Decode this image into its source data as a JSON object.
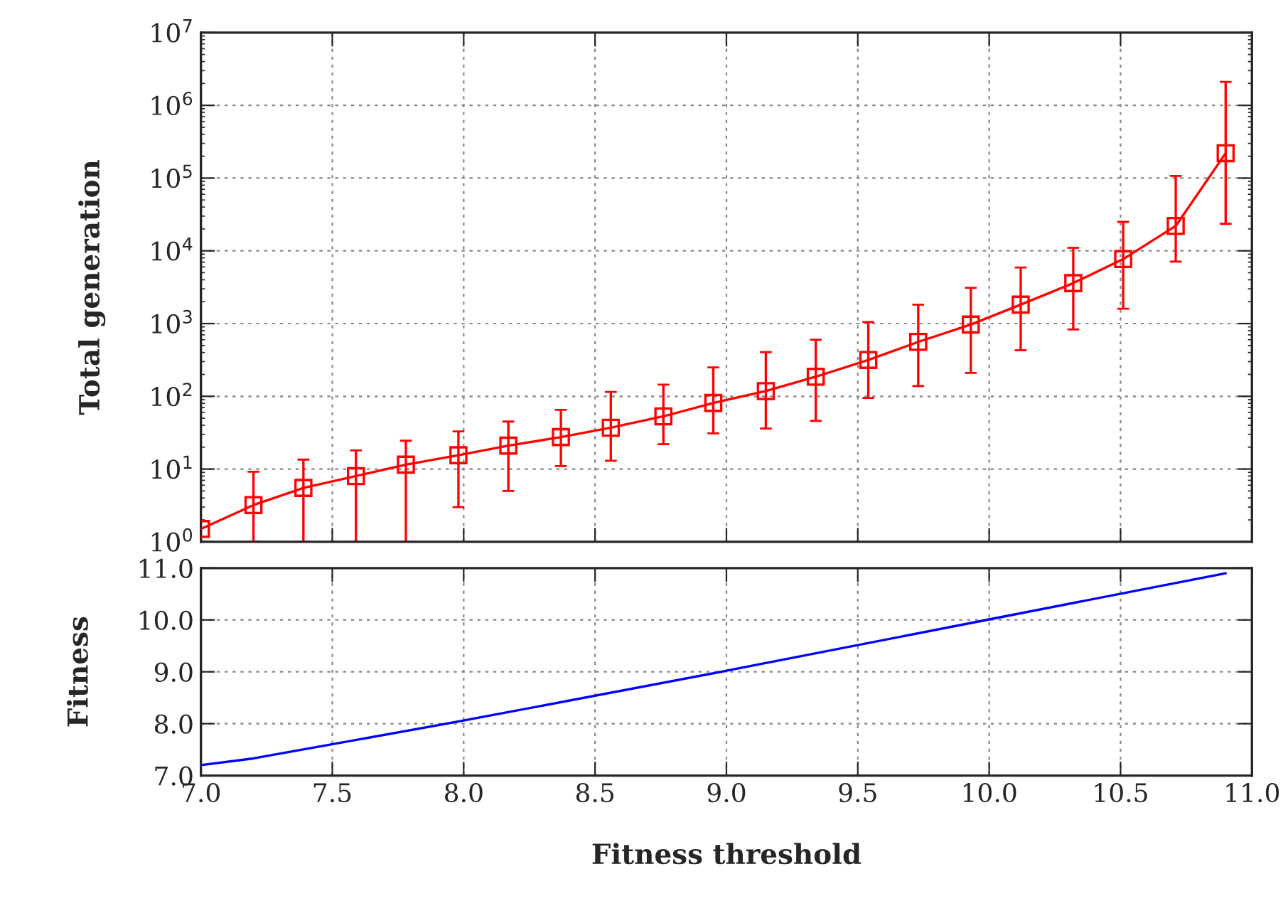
{
  "chart_data": [
    {
      "type": "line",
      "ylabel": "Total generation",
      "log": "y",
      "grid": true,
      "marker": "square",
      "line_style": "solid",
      "tick_labels": "y",
      "xlim": [
        7.0,
        11.0
      ],
      "xticks": [
        {
          "value": 7.0,
          "label": null
        },
        {
          "value": 7.5,
          "label": null
        },
        {
          "value": 8.0,
          "label": null
        },
        {
          "value": 8.5,
          "label": null
        },
        {
          "value": 9.0,
          "label": null
        },
        {
          "value": 9.5,
          "label": null
        },
        {
          "value": 10.0,
          "label": null
        },
        {
          "value": 10.5,
          "label": null
        },
        {
          "value": 11.0,
          "label": null
        }
      ],
      "ylim": [
        1,
        10000000
      ],
      "yticks": [
        {
          "value": 1,
          "label": "10$^{0}$"
        },
        {
          "value": 10,
          "label": "10$^{1}$"
        },
        {
          "value": 100,
          "label": "10$^{2}$"
        },
        {
          "value": 1000,
          "label": "10$^{3}$"
        },
        {
          "value": 10000,
          "label": "10$^{4}$"
        },
        {
          "value": 100000,
          "label": "10$^{5}$"
        },
        {
          "value": 1000000,
          "label": "10$^{6}$"
        },
        {
          "value": 10000000,
          "label": "10$^{7}$"
        }
      ],
      "series": [
        {
          "color": "#ff0000",
          "x": [
            7.0,
            7.2,
            7.39,
            7.59,
            7.78,
            7.98,
            8.17,
            8.37,
            8.56,
            8.76,
            8.95,
            9.15,
            9.34,
            9.54,
            9.73,
            9.93,
            10.12,
            10.32,
            10.51,
            10.71,
            10.9
          ],
          "values": [
            1.5,
            3.2,
            5.5,
            8,
            11.5,
            15.5,
            21,
            27.5,
            37,
            53,
            81,
            118,
            186,
            316,
            560,
            970,
            1820,
            3600,
            7700,
            22000,
            220000
          ],
          "errors": [
            null,
            [
              1,
              9.2
            ],
            [
              1,
              13.5
            ],
            [
              1,
              18
            ],
            [
              1,
              24.5
            ],
            [
              3.0,
              33
            ],
            [
              5.0,
              45
            ],
            [
              11,
              65
            ],
            [
              13,
              115
            ],
            [
              22,
              145
            ],
            [
              31,
              250
            ],
            [
              36,
              405
            ],
            [
              46,
              600
            ],
            [
              95,
              1050
            ],
            [
              138,
              1820
            ],
            [
              210,
              3100
            ],
            [
              430,
              5900
            ],
            [
              830,
              11000
            ],
            [
              1600,
              25000
            ],
            [
              7100,
              107000
            ],
            [
              23500,
              2100000
            ]
          ]
        }
      ]
    },
    {
      "type": "line",
      "xlabel": "Fitness threshold",
      "ylabel": "Fitness",
      "grid": true,
      "marker": "none",
      "line_style": "solid",
      "xlim": [
        7.0,
        11.0
      ],
      "xticks": [
        {
          "value": 7.0,
          "label": "7.0"
        },
        {
          "value": 7.5,
          "label": "7.5"
        },
        {
          "value": 8.0,
          "label": "8.0"
        },
        {
          "value": 8.5,
          "label": "8.5"
        },
        {
          "value": 9.0,
          "label": "9.0"
        },
        {
          "value": 9.5,
          "label": "9.5"
        },
        {
          "value": 10.0,
          "label": "10.0"
        },
        {
          "value": 10.5,
          "label": "10.5"
        },
        {
          "value": 11.0,
          "label": "11.0"
        }
      ],
      "ylim": [
        7.0,
        11.0
      ],
      "yticks": [
        {
          "value": 7.0,
          "label": "7.0"
        },
        {
          "value": 8.0,
          "label": "8.0"
        },
        {
          "value": 9.0,
          "label": "9.0"
        },
        {
          "value": 10.0,
          "label": "10.0"
        },
        {
          "value": 11.0,
          "label": "11.0"
        }
      ],
      "series": [
        {
          "color": "#0000ff",
          "x": [
            7.0,
            7.2,
            8.0,
            9.0,
            10.0,
            10.9
          ],
          "values": [
            7.2,
            7.33,
            8.06,
            9.02,
            10.01,
            10.9
          ]
        }
      ]
    }
  ]
}
